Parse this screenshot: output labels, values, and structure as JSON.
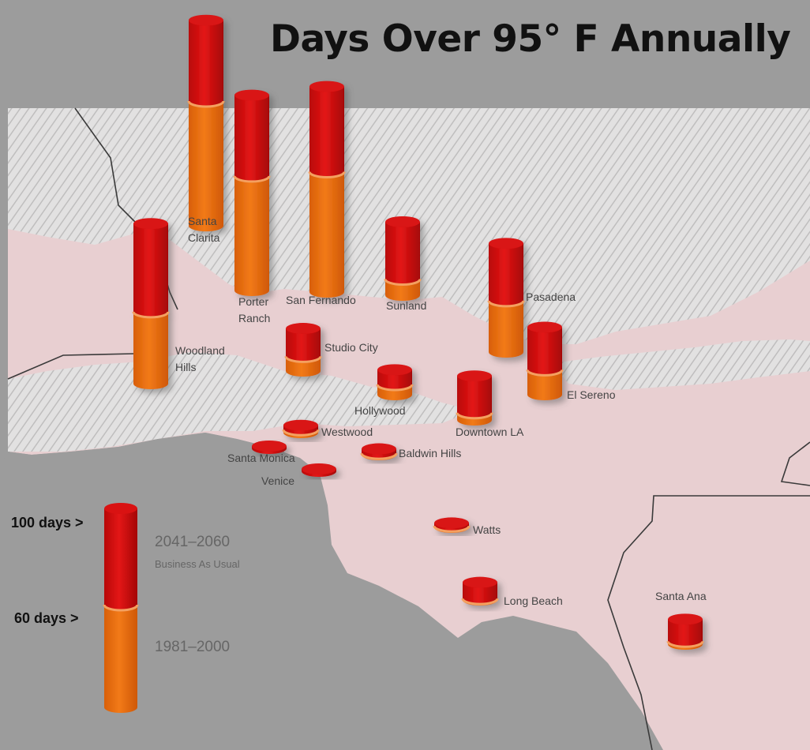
{
  "title": "Days Over 95° F Annually",
  "colors": {
    "future_red": "#d01010",
    "historic_orange": "#ea6e10",
    "land": "#e8cfd1",
    "ocean": "#9c9c9c",
    "mountains": "#dcdcdc"
  },
  "legend": {
    "marker_100": "100 days >",
    "marker_60": "60 days >",
    "future_period": "2041–2060",
    "future_scenario": "Business As Usual",
    "historic_period": "1981–2000"
  },
  "map_data": {
    "type": "stacked-cylinder-map",
    "series": [
      {
        "name": "1981–2000"
      },
      {
        "name": "2041–2060 Business As Usual"
      }
    ],
    "locations": [
      {
        "name": "Santa\nClarita",
        "historic_days": 85,
        "future_days": 140
      },
      {
        "name": "Porter\nRanch",
        "historic_days": 78,
        "future_days": 133
      },
      {
        "name": "San Fernando",
        "historic_days": 82,
        "future_days": 140
      },
      {
        "name": "Woodland\nHills",
        "historic_days": 49,
        "future_days": 109
      },
      {
        "name": "Sunland",
        "historic_days": 11,
        "future_days": 50
      },
      {
        "name": "Pasadena",
        "historic_days": 35,
        "future_days": 74
      },
      {
        "name": "Studio City",
        "historic_days": 10,
        "future_days": 29
      },
      {
        "name": "El Sereno",
        "historic_days": 17,
        "future_days": 46
      },
      {
        "name": "Hollywood",
        "historic_days": 7,
        "future_days": 17
      },
      {
        "name": "Downtown LA",
        "historic_days": 5,
        "future_days": 30
      },
      {
        "name": "Westwood",
        "historic_days": 2,
        "future_days": 5
      },
      {
        "name": "Santa Monica",
        "historic_days": 0,
        "future_days": 1
      },
      {
        "name": "Baldwin Hills",
        "historic_days": 1,
        "future_days": 4
      },
      {
        "name": "Venice",
        "historic_days": 0,
        "future_days": 1
      },
      {
        "name": "Watts",
        "historic_days": 1,
        "future_days": 3
      },
      {
        "name": "Long Beach",
        "historic_days": 1,
        "future_days": 12
      },
      {
        "name": "Santa Ana",
        "historic_days": 2,
        "future_days": 17
      }
    ]
  }
}
